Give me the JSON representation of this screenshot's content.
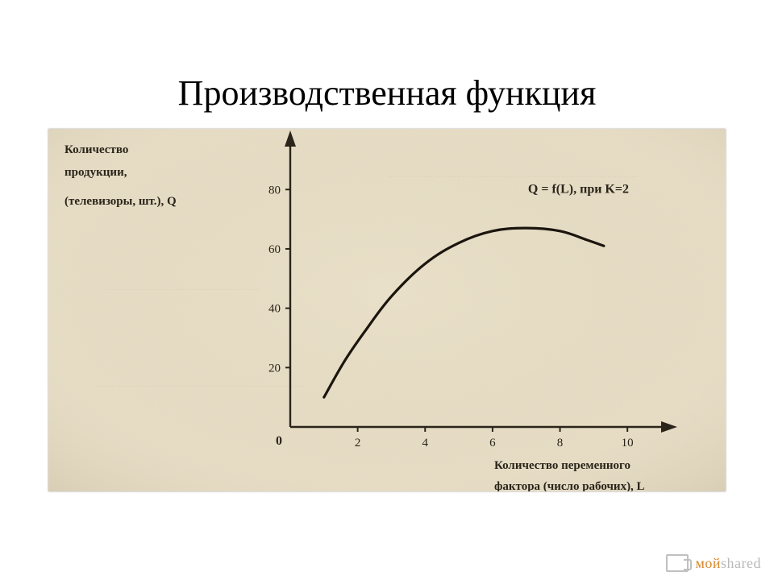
{
  "title": "Производственная функция",
  "chart": {
    "type": "line",
    "background_color": "#e7ddc6",
    "paper_noise": true,
    "axis_color": "#2a241a",
    "curve_color": "#1b150e",
    "curve_width": 3.2,
    "text_color": "#2a241a",
    "font_family": "serif",
    "y_axis_label_lines": [
      "Количество",
      "продукции,",
      "(телевизоры, шт.), Q"
    ],
    "y_axis_label_fontsize": 15,
    "y_axis_label_weight": "bold",
    "x_axis_label_lines": [
      "Количество переменного",
      "фактора (число рабочих), L"
    ],
    "x_axis_label_fontsize": 15,
    "x_axis_label_weight": "bold",
    "equation_label": "Q = f(L), при K=2",
    "equation_fontsize": 16,
    "equation_weight": "bold",
    "origin_label": "0",
    "x_ticks": [
      2,
      4,
      6,
      8,
      10
    ],
    "y_ticks": [
      20,
      40,
      60,
      80
    ],
    "xlim": [
      0,
      11
    ],
    "ylim": [
      0,
      95
    ],
    "tick_fontsize": 15,
    "curve_points": [
      {
        "L": 1.0,
        "Q": 10
      },
      {
        "L": 1.6,
        "Q": 22
      },
      {
        "L": 2.2,
        "Q": 32
      },
      {
        "L": 3.0,
        "Q": 44
      },
      {
        "L": 4.0,
        "Q": 55
      },
      {
        "L": 5.0,
        "Q": 62
      },
      {
        "L": 6.0,
        "Q": 66
      },
      {
        "L": 7.0,
        "Q": 67
      },
      {
        "L": 8.0,
        "Q": 66
      },
      {
        "L": 8.8,
        "Q": 63
      },
      {
        "L": 9.3,
        "Q": 61
      }
    ]
  },
  "watermark": {
    "text_left": "мой",
    "text_right": "shared",
    "color_left": "#d68a2e",
    "color_right": "#b8b8b8"
  }
}
